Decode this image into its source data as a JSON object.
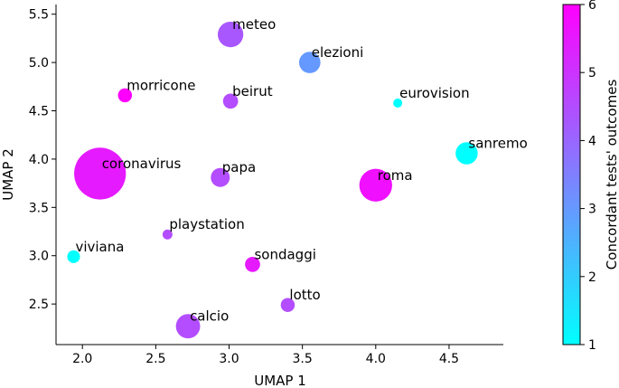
{
  "chart_data": {
    "type": "scatter",
    "title": "",
    "xlabel": "UMAP 1",
    "ylabel": "UMAP 2",
    "xlim": [
      1.82,
      4.87
    ],
    "ylim": [
      2.08,
      5.6
    ],
    "xticks": [
      2.0,
      2.5,
      3.0,
      3.5,
      4.0,
      4.5
    ],
    "yticks": [
      2.5,
      3.0,
      3.5,
      4.0,
      4.5,
      5.0,
      5.5
    ],
    "grid": false,
    "colorbar": {
      "label": "Concordant tests' outcomes",
      "min": 1,
      "max": 6,
      "ticks": [
        1,
        2,
        3,
        4,
        5,
        6
      ],
      "colormap": "cool",
      "color_min": "#00ffff",
      "color_max": "#ff00ff"
    },
    "points": [
      {
        "label": "meteo",
        "x": 3.01,
        "y": 5.29,
        "size": 200,
        "value": 4.3
      },
      {
        "label": "elezioni",
        "x": 3.55,
        "y": 5.0,
        "size": 140,
        "value": 3.0
      },
      {
        "label": "morricone",
        "x": 2.29,
        "y": 4.66,
        "size": 60,
        "value": 6.0
      },
      {
        "label": "beirut",
        "x": 3.01,
        "y": 4.6,
        "size": 70,
        "value": 4.5
      },
      {
        "label": "eurovision",
        "x": 4.15,
        "y": 4.58,
        "size": 25,
        "value": 1.0
      },
      {
        "label": "sanremo",
        "x": 4.62,
        "y": 4.06,
        "size": 150,
        "value": 1.0
      },
      {
        "label": "coronavirus",
        "x": 2.12,
        "y": 3.85,
        "size": 820,
        "value": 5.5
      },
      {
        "label": "papa",
        "x": 2.94,
        "y": 3.81,
        "size": 110,
        "value": 4.5
      },
      {
        "label": "roma",
        "x": 4.0,
        "y": 3.73,
        "size": 330,
        "value": 5.7
      },
      {
        "label": "playstation",
        "x": 2.58,
        "y": 3.22,
        "size": 30,
        "value": 4.5
      },
      {
        "label": "viviana",
        "x": 1.94,
        "y": 2.99,
        "size": 50,
        "value": 1.0
      },
      {
        "label": "sondaggi",
        "x": 3.16,
        "y": 2.91,
        "size": 70,
        "value": 5.5
      },
      {
        "label": "lotto",
        "x": 3.4,
        "y": 2.49,
        "size": 60,
        "value": 4.5
      },
      {
        "label": "calcio",
        "x": 2.72,
        "y": 2.27,
        "size": 180,
        "value": 4.5
      }
    ]
  }
}
